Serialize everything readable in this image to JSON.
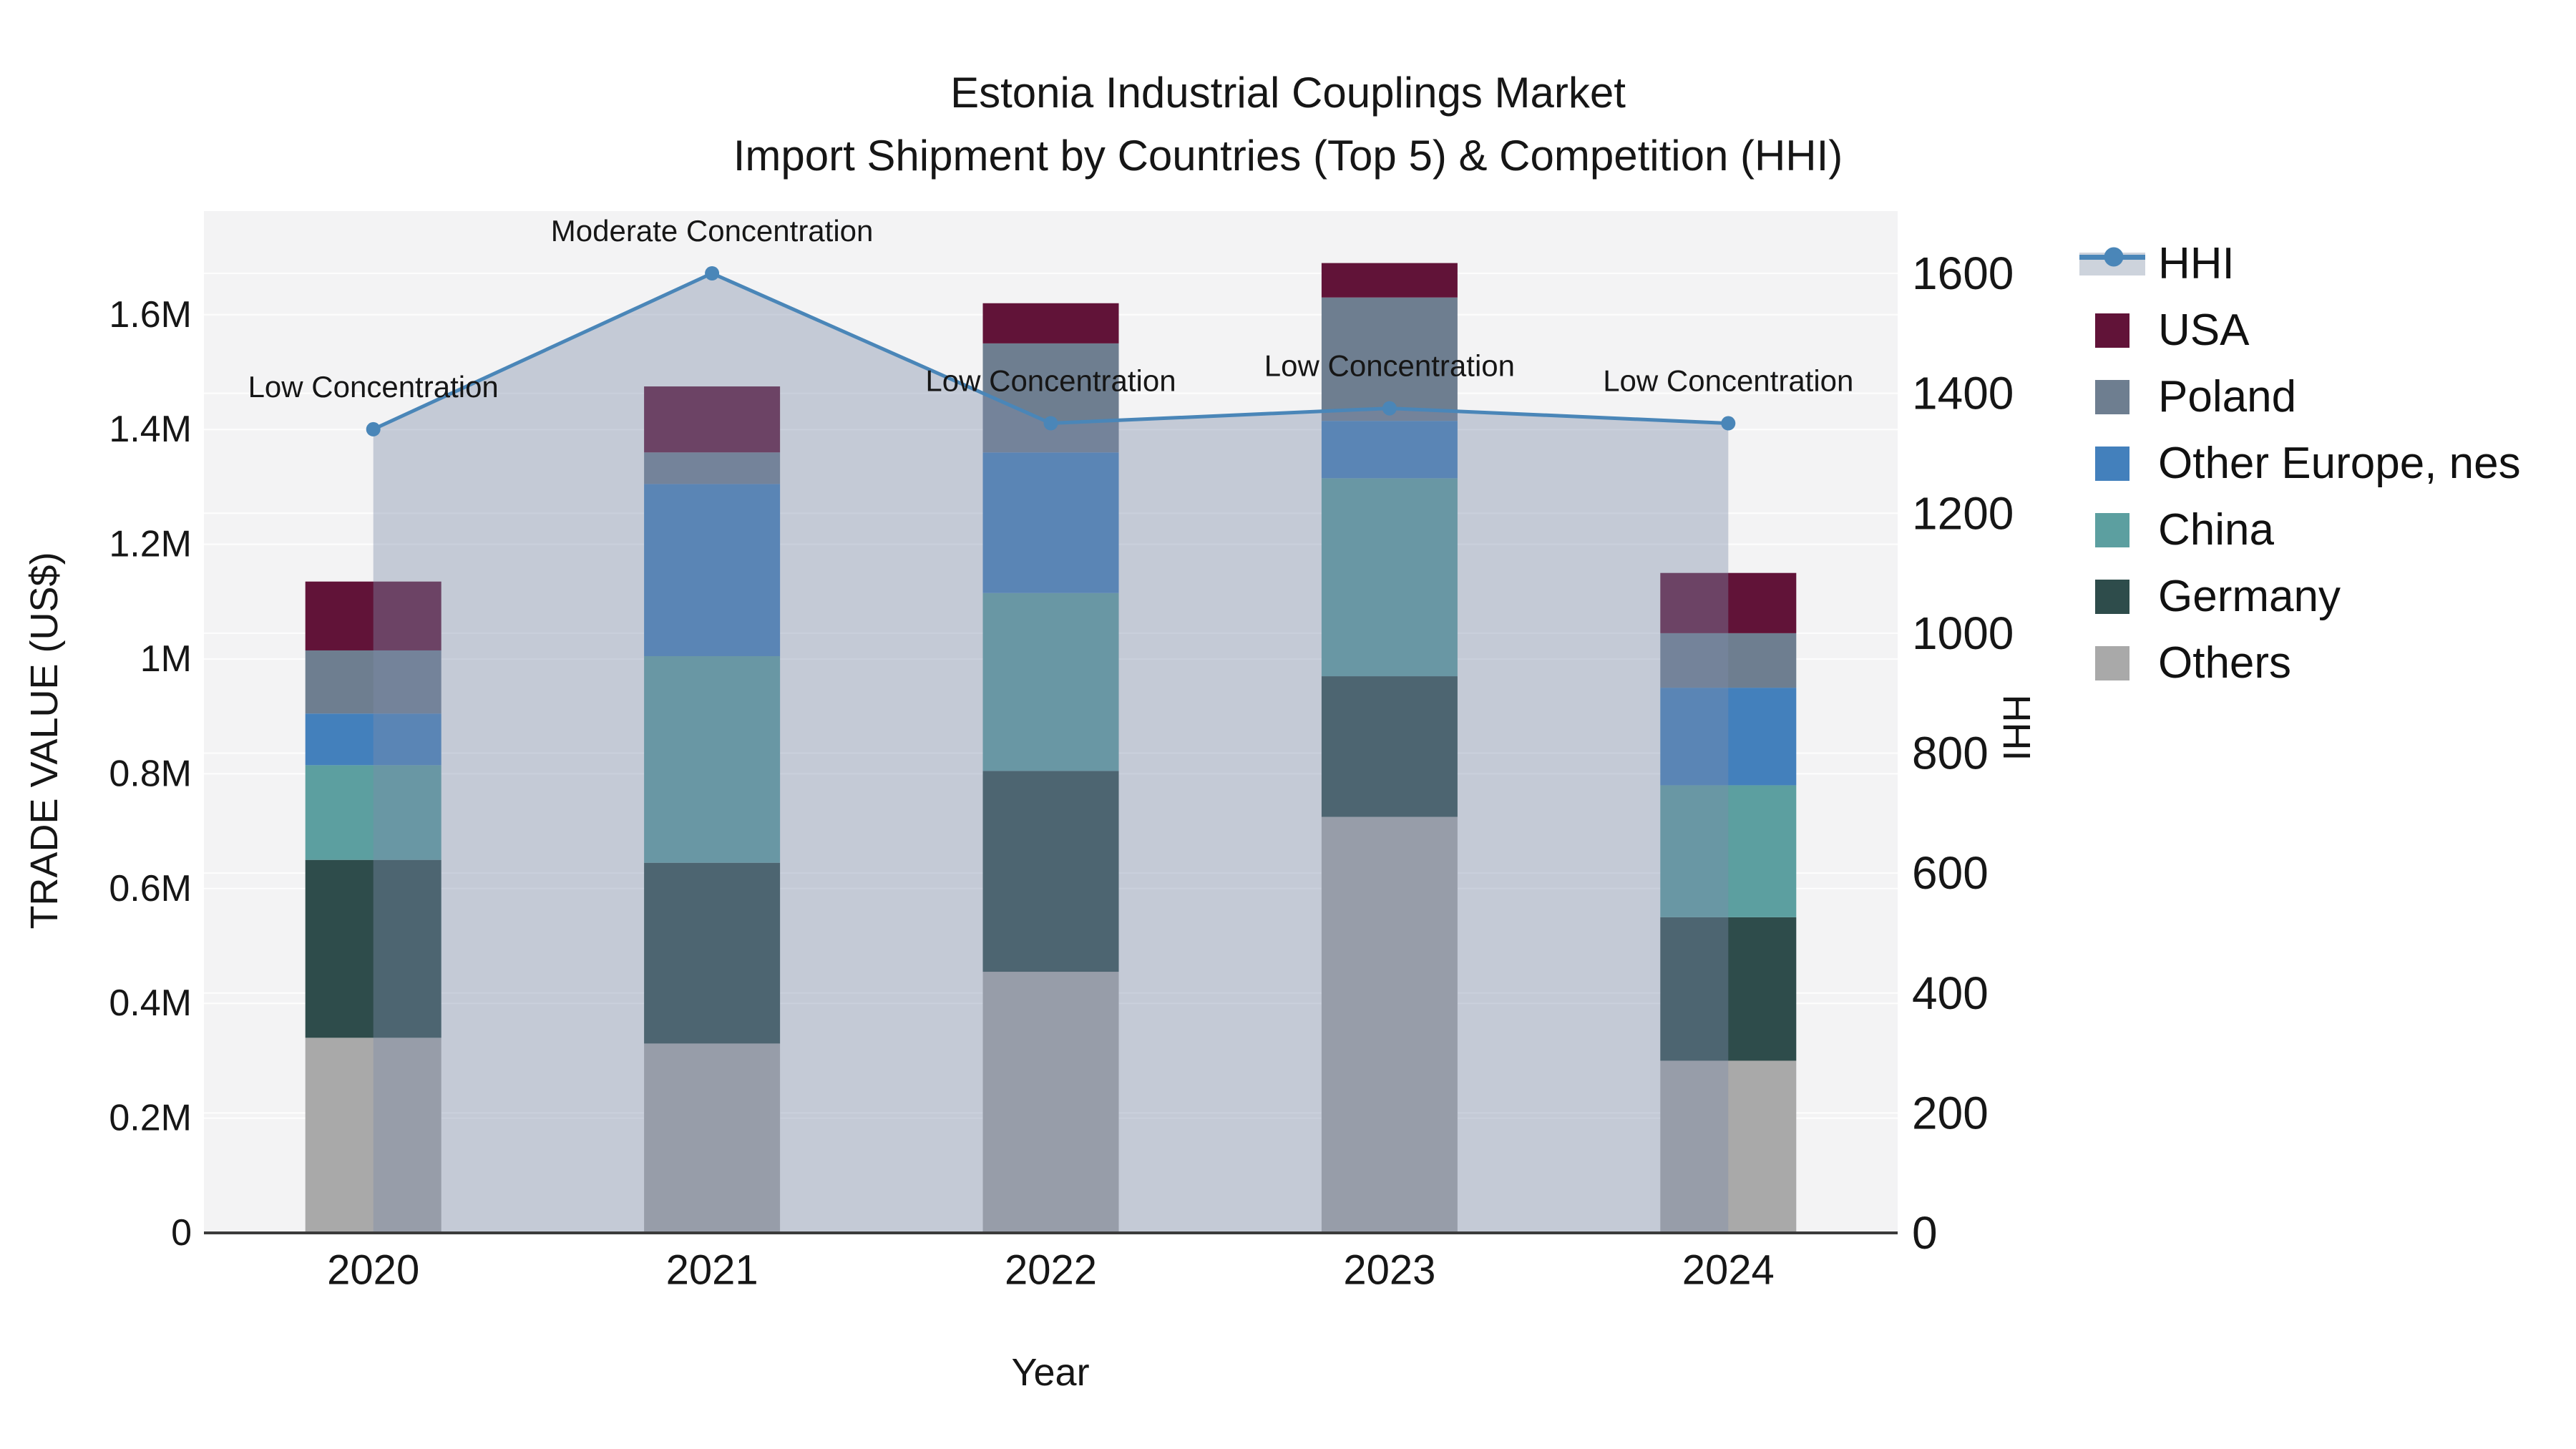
{
  "title": {
    "line1": "Estonia Industrial Couplings Market",
    "line2": "Import Shipment by Countries (Top 5) & Competition (HHI)"
  },
  "axes": {
    "left": {
      "title": "TRADE VALUE (US$)",
      "ticks": [
        {
          "value": 0,
          "label": "0"
        },
        {
          "value": 200000,
          "label": "0.2M"
        },
        {
          "value": 400000,
          "label": "0.4M"
        },
        {
          "value": 600000,
          "label": "0.6M"
        },
        {
          "value": 800000,
          "label": "0.8M"
        },
        {
          "value": 1000000,
          "label": "1M"
        },
        {
          "value": 1200000,
          "label": "1.2M"
        },
        {
          "value": 1400000,
          "label": "1.4M"
        },
        {
          "value": 1600000,
          "label": "1.6M"
        }
      ]
    },
    "right": {
      "title": "HHI",
      "ticks": [
        {
          "value": 0,
          "label": "0"
        },
        {
          "value": 200,
          "label": "200"
        },
        {
          "value": 400,
          "label": "400"
        },
        {
          "value": 600,
          "label": "600"
        },
        {
          "value": 800,
          "label": "800"
        },
        {
          "value": 1000,
          "label": "1000"
        },
        {
          "value": 1200,
          "label": "1200"
        },
        {
          "value": 1400,
          "label": "1400"
        },
        {
          "value": 1600,
          "label": "1600"
        }
      ]
    },
    "x": {
      "title": "Year"
    }
  },
  "chart_data": {
    "type": "bar",
    "subtype": "stacked bars with HHI line overlay (secondary axis, area fill to zero)",
    "categories": [
      "2020",
      "2021",
      "2022",
      "2023",
      "2024"
    ],
    "series": [
      {
        "name": "Others",
        "color": "#A9A9A9",
        "values": [
          340000,
          330000,
          455000,
          725000,
          300000
        ]
      },
      {
        "name": "Germany",
        "color": "#2E4C4B",
        "values": [
          310000,
          315000,
          350000,
          245000,
          250000
        ]
      },
      {
        "name": "China",
        "color": "#5C9FA0",
        "values": [
          165000,
          360000,
          310000,
          345000,
          230000
        ]
      },
      {
        "name": "Other Europe, nes",
        "color": "#4380BC",
        "values": [
          90000,
          300000,
          245000,
          100000,
          170000
        ]
      },
      {
        "name": "Poland",
        "color": "#6E7E90",
        "values": [
          110000,
          55000,
          190000,
          215000,
          95000
        ]
      },
      {
        "name": "USA",
        "color": "#611338",
        "values": [
          120000,
          115000,
          70000,
          60000,
          105000
        ]
      }
    ],
    "totals": [
      1135000,
      1475000,
      1620000,
      1690000,
      1150000
    ],
    "line": {
      "name": "HHI",
      "color": "#4A86B8",
      "area_fill": "rgba(126,140,170,0.40)",
      "values": [
        1340,
        1600,
        1350,
        1375,
        1350
      ],
      "annotations": [
        "Low Concentration",
        "Moderate Concentration",
        "Low Concentration",
        "Low Concentration",
        "Low Concentration"
      ]
    },
    "legend_order": [
      "HHI",
      "USA",
      "Poland",
      "Other Europe, nes",
      "China",
      "Germany",
      "Others"
    ],
    "xlabel": "Year",
    "ylabel": "TRADE VALUE (US$)",
    "y2label": "HHI",
    "ylim": [
      0,
      1780000
    ],
    "y2lim": [
      0,
      1700
    ],
    "grid": true,
    "legend_position": "right",
    "plot_bg": "#F3F3F4",
    "grid_color": "#FFFFFF",
    "axisline_color": "#3B3B3B"
  }
}
